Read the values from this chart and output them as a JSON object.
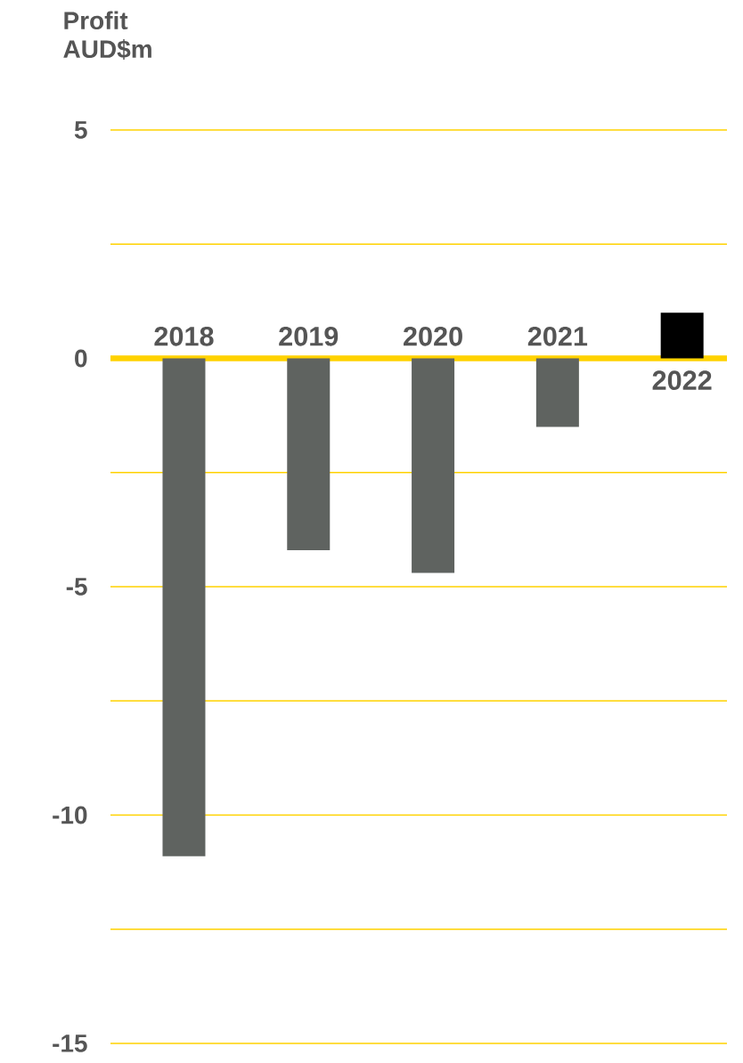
{
  "chart_data": {
    "type": "bar",
    "title": "Profit AUD$m",
    "categories": [
      "2018",
      "2019",
      "2020",
      "2021",
      "2022"
    ],
    "values": [
      -10.9,
      -4.2,
      -4.7,
      -1.5,
      1.0
    ],
    "colors": [
      "#5f6360",
      "#5f6360",
      "#5f6360",
      "#5f6360",
      "#000000"
    ],
    "ylim": [
      -15,
      5
    ],
    "yticks": [
      -15,
      {
        "value": -12.5,
        "label": null
      },
      -10,
      {
        "value": -7.5,
        "label": null
      },
      -5,
      {
        "value": -2.5,
        "label": null
      },
      0,
      {
        "value": 2.5,
        "label": null
      },
      5
    ],
    "grid": "y"
  }
}
